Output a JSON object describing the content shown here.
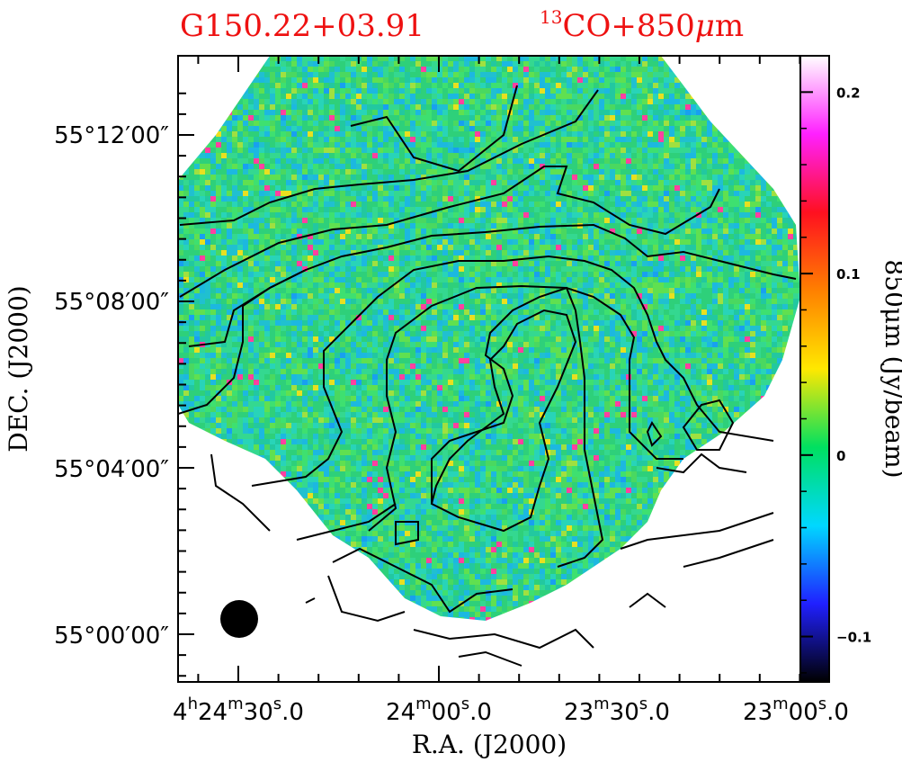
{
  "chart_data": {
    "type": "heatmap",
    "title_left": "G150.22+03.91",
    "title_right": {
      "sup": "13",
      "main": "CO+850",
      "mu": "μ",
      "unit": "m"
    },
    "xlabel": "R.A.  (J2000)",
    "ylabel": "DEC.  (J2000)",
    "x_ticks": [
      {
        "h": "4",
        "m": "24",
        "s": "30",
        "frac": "0",
        "label": "4h24m30s.0"
      },
      {
        "h": "",
        "m": "24",
        "s": "00",
        "frac": "0",
        "label": "24m00s.0"
      },
      {
        "h": "",
        "m": "23",
        "s": "30",
        "frac": "0",
        "label": "23m30s.0"
      },
      {
        "h": "",
        "m": "23",
        "s": "00",
        "frac": "0",
        "label": "23m00s.0"
      }
    ],
    "y_ticks": [
      "55°12′00″",
      "55°08′00″",
      "55°04′00″",
      "55°00′00″"
    ],
    "colorbar": {
      "label": "850μm (Jy/beam)",
      "ticks": [
        "0.2",
        "0.1",
        "0",
        "−0.1"
      ],
      "tick_values": [
        0.2,
        0.1,
        0,
        -0.1
      ],
      "range": [
        -0.125,
        0.22
      ],
      "colors": [
        "#000000",
        "#2020ff",
        "#00d8ff",
        "#00e060",
        "#ffe800",
        "#ff8000",
        "#ff1020",
        "#ff20ff",
        "#ffffff"
      ]
    },
    "map_colors": {
      "base": "#2ed07a",
      "contour": "#000000"
    }
  }
}
